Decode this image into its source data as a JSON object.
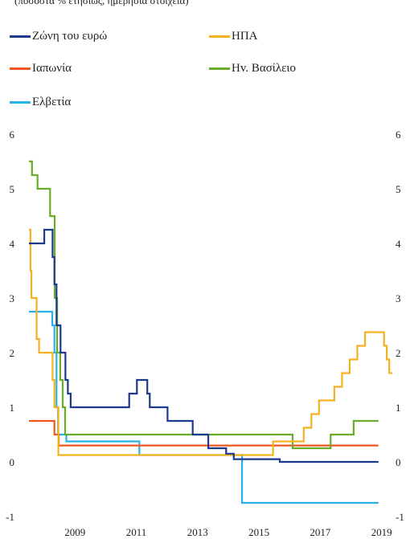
{
  "chart_data": {
    "type": "line",
    "subtitle": "(ποσοστά % ετησίως, ημερήσια στοιχεία)",
    "x_ticks": [
      "2009",
      "2011",
      "2013",
      "2015",
      "2017",
      "2019"
    ],
    "xlim": [
      2008.0,
      2019.4
    ],
    "ylim": [
      -1,
      6
    ],
    "y_ticks": [
      6,
      5,
      4,
      3,
      2,
      1,
      0,
      -1
    ],
    "grid": false,
    "legend_position": "top, two columns",
    "series": [
      {
        "name": "Ζώνη του ευρώ",
        "color": "#1b3a8c",
        "steps": [
          [
            2008.0,
            4.0
          ],
          [
            2008.5,
            4.25
          ],
          [
            2008.77,
            3.75
          ],
          [
            2008.83,
            3.25
          ],
          [
            2008.9,
            2.5
          ],
          [
            2009.03,
            2.0
          ],
          [
            2009.19,
            1.5
          ],
          [
            2009.27,
            1.25
          ],
          [
            2009.36,
            1.0
          ],
          [
            2011.27,
            1.25
          ],
          [
            2011.52,
            1.5
          ],
          [
            2011.86,
            1.25
          ],
          [
            2011.94,
            1.0
          ],
          [
            2012.52,
            0.75
          ],
          [
            2013.34,
            0.5
          ],
          [
            2013.85,
            0.25
          ],
          [
            2014.43,
            0.15
          ],
          [
            2014.68,
            0.05
          ],
          [
            2016.18,
            0.0
          ],
          [
            2019.4,
            0.0
          ]
        ]
      },
      {
        "name": "ΗΠΑ",
        "color": "#f5b120",
        "steps": [
          [
            2008.0,
            4.25
          ],
          [
            2008.05,
            3.5
          ],
          [
            2008.08,
            3.0
          ],
          [
            2008.25,
            2.25
          ],
          [
            2008.33,
            2.0
          ],
          [
            2008.77,
            1.5
          ],
          [
            2008.83,
            1.0
          ],
          [
            2008.96,
            0.125
          ],
          [
            2015.96,
            0.375
          ],
          [
            2016.96,
            0.625
          ],
          [
            2017.21,
            0.875
          ],
          [
            2017.46,
            1.125
          ],
          [
            2017.96,
            1.375
          ],
          [
            2018.21,
            1.625
          ],
          [
            2018.46,
            1.875
          ],
          [
            2018.71,
            2.125
          ],
          [
            2018.96,
            2.375
          ],
          [
            2019.58,
            2.125
          ],
          [
            2019.67,
            1.875
          ],
          [
            2019.75,
            1.625
          ],
          [
            2019.85,
            1.625
          ]
        ]
      },
      {
        "name": "Ιαπωνία",
        "color": "#f0561e",
        "steps": [
          [
            2008.0,
            0.75
          ],
          [
            2008.83,
            0.5
          ],
          [
            2008.97,
            0.3
          ],
          [
            2010.83,
            0.3
          ],
          [
            2019.4,
            0.3
          ]
        ]
      },
      {
        "name": "Ηv. Βασίλειο",
        "color": "#6aac2a",
        "steps": [
          [
            2008.0,
            5.5
          ],
          [
            2008.1,
            5.25
          ],
          [
            2008.28,
            5.0
          ],
          [
            2008.69,
            4.5
          ],
          [
            2008.76,
            4.5
          ],
          [
            2008.84,
            3.0
          ],
          [
            2008.92,
            2.0
          ],
          [
            2009.02,
            1.5
          ],
          [
            2009.1,
            1.0
          ],
          [
            2009.18,
            0.5
          ],
          [
            2016.6,
            0.25
          ],
          [
            2017.84,
            0.5
          ],
          [
            2018.59,
            0.75
          ],
          [
            2019.4,
            0.75
          ]
        ]
      },
      {
        "name": "Ελβετία",
        "color": "#27b2e6",
        "steps": [
          [
            2008.0,
            2.75
          ],
          [
            2008.76,
            2.5
          ],
          [
            2008.83,
            2.0
          ],
          [
            2008.9,
            1.0
          ],
          [
            2008.95,
            0.5
          ],
          [
            2009.22,
            0.375
          ],
          [
            2011.6,
            0.125
          ],
          [
            2014.95,
            -0.75
          ],
          [
            2019.4,
            -0.75
          ]
        ]
      }
    ]
  },
  "legend": [
    {
      "label": "Ζώνη του ευρώ",
      "color": "#1b3a8c"
    },
    {
      "label": "ΗΠΑ",
      "color": "#f5b120"
    },
    {
      "label": "Ιαπωνία",
      "color": "#f0561e"
    },
    {
      "label": "Ηv. Βασίλειο",
      "color": "#6aac2a"
    },
    {
      "label": "Ελβετία",
      "color": "#27b2e6"
    }
  ]
}
